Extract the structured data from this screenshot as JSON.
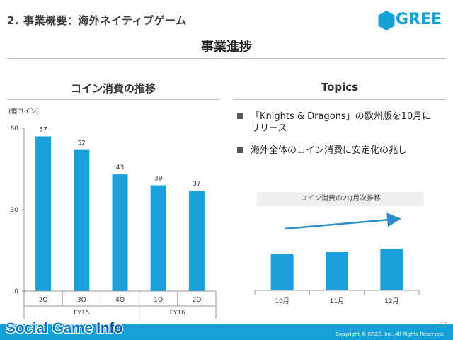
{
  "header": {
    "title": "2. 事業概要：海外ネイティブゲーム",
    "logo_text": "GREE",
    "subtitle": "事業進捗"
  },
  "left_section": {
    "heading": "コイン消費の推移"
  },
  "right_section": {
    "heading": "Topics",
    "topics": [
      "「Knights & Dragons」の欧州版を10月にリリース",
      "海外全体のコイン消費に安定化の兆し"
    ],
    "mini_chart_caption": "コイン消費の2Q月次推移"
  },
  "footer": {
    "copyright": "Copyright © GREE, Inc. All Rights Reserved.",
    "page_number": "16",
    "watermark_social": "Social Game ",
    "watermark_info": "Info"
  },
  "colors": {
    "bar": "#1aa1dc",
    "accent": "#16a0d8",
    "trend_arrow": "#2a8fc7"
  },
  "chart_data": [
    {
      "type": "bar",
      "unit_label": "(億コイン)",
      "categories": [
        "2Q",
        "3Q",
        "4Q",
        "1Q",
        "2Q"
      ],
      "groups": [
        {
          "label": "FY15",
          "span": 3
        },
        {
          "label": "FY16",
          "span": 2
        }
      ],
      "values": [
        57,
        52,
        43,
        39,
        37
      ],
      "value_labels": [
        "57",
        "52",
        "43",
        "39",
        "37"
      ],
      "ylim": [
        0,
        60
      ],
      "yticks": [
        "0",
        "30",
        "60"
      ],
      "grid": false
    },
    {
      "type": "bar",
      "categories": [
        "10月",
        "11月",
        "12月"
      ],
      "values": [
        17,
        18,
        19.5
      ],
      "ylim": [
        0,
        30
      ],
      "trend": "up"
    }
  ]
}
